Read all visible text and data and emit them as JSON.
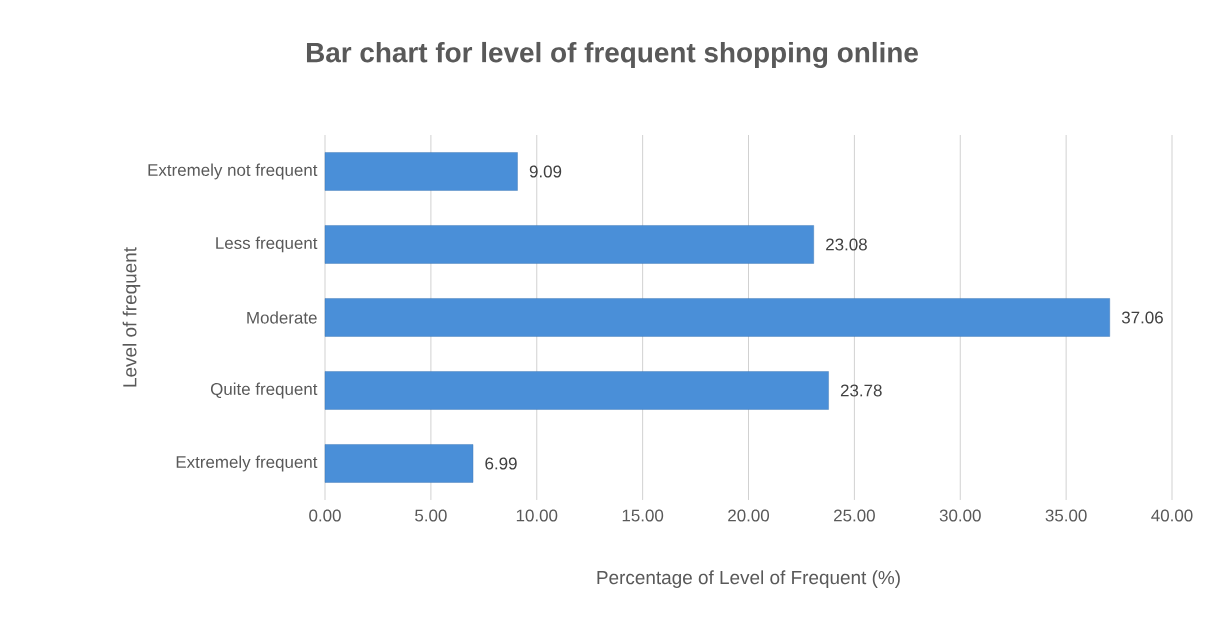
{
  "chart_data": {
    "type": "bar",
    "orientation": "horizontal",
    "title": "Bar chart for level of frequent shopping online",
    "xlabel": "Percentage of Level of Frequent (%)",
    "ylabel": "Level of frequent",
    "categories": [
      "Extremely not frequent",
      "Less frequent",
      "Moderate",
      "Quite frequent",
      "Extremely frequent"
    ],
    "values": [
      9.09,
      23.08,
      37.06,
      23.78,
      6.99
    ],
    "color": "#4a8fd8",
    "data_labels": true,
    "grid": "x",
    "xlim": [
      0,
      40
    ],
    "xticks": [
      {
        "value": 0,
        "label": "0.00"
      },
      {
        "value": 5,
        "label": "5.00"
      },
      {
        "value": 10,
        "label": "10.00"
      },
      {
        "value": 15,
        "label": "15.00"
      },
      {
        "value": 20,
        "label": "20.00"
      },
      {
        "value": 25,
        "label": "25.00"
      },
      {
        "value": 30,
        "label": "30.00"
      },
      {
        "value": 35,
        "label": "35.00"
      },
      {
        "value": 40,
        "label": "40.00"
      }
    ]
  }
}
